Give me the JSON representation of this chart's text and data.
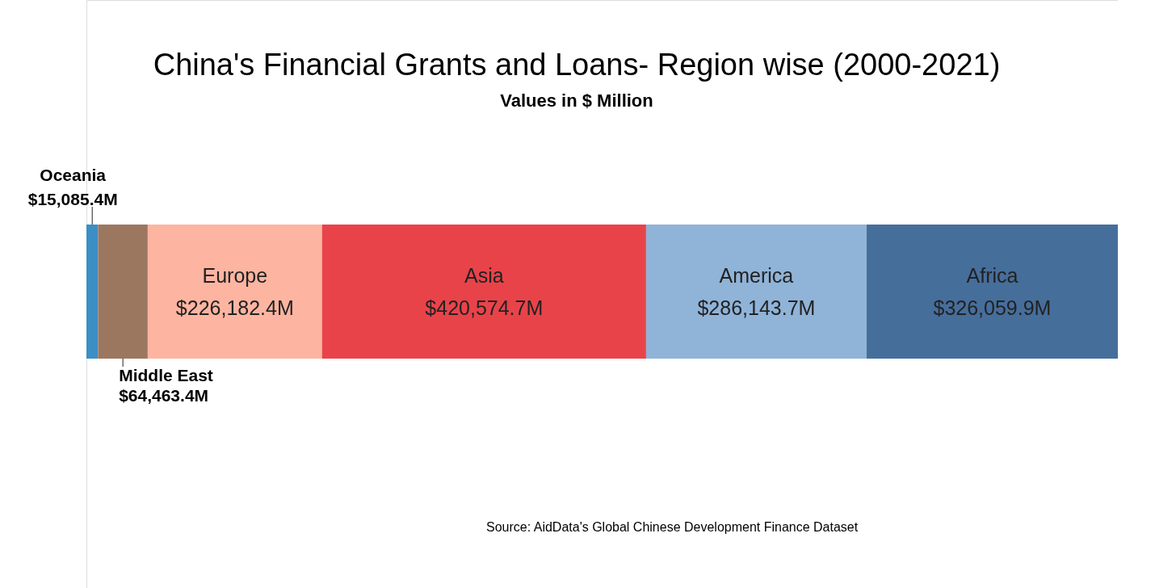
{
  "chart_data": {
    "type": "bar",
    "orientation": "horizontal",
    "stacked": true,
    "title": "China's Financial Grants and Loans- Region wise (2000-2021)",
    "subtitle": "Values in $ Million",
    "categories": [
      null
    ],
    "series": [
      {
        "name": "Oceania",
        "color": "#3b8fc4",
        "values": [
          15085.4
        ],
        "value_labels": [
          "$15,085.4M"
        ]
      },
      {
        "name": "Middle East",
        "color": "#9c7760",
        "values": [
          64463.4
        ],
        "value_labels": [
          "$64,463.4M"
        ]
      },
      {
        "name": "Europe",
        "color": "#fdb5a1",
        "values": [
          226182.4
        ],
        "value_labels": [
          "$226,182.4M"
        ]
      },
      {
        "name": "Asia",
        "color": "#e9434a",
        "values": [
          420574.7
        ],
        "value_labels": [
          "$420,574.7M"
        ]
      },
      {
        "name": "America",
        "color": "#90b3d8",
        "values": [
          286143.7
        ],
        "value_labels": [
          "$286,143.7M"
        ]
      },
      {
        "name": "Africa",
        "color": "#466e9b",
        "values": [
          326059.9
        ],
        "value_labels": [
          "$326,059.9M"
        ]
      }
    ],
    "annotations": [
      "Source: AidData's Global Chinese Development Finance Dataset"
    ]
  }
}
